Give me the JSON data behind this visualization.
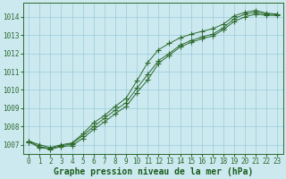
{
  "title": "Graphe pression niveau de la mer (hPa)",
  "x_hours": [
    0,
    1,
    2,
    3,
    4,
    5,
    6,
    7,
    8,
    9,
    10,
    11,
    12,
    13,
    14,
    15,
    16,
    17,
    18,
    19,
    20,
    21,
    22,
    23
  ],
  "series": [
    [
      1007.2,
      1007.0,
      1006.85,
      1007.0,
      1007.1,
      1007.6,
      1008.1,
      1008.4,
      1008.9,
      1009.3,
      1010.1,
      1011.1,
      1011.8,
      1012.15,
      1012.5,
      1012.75,
      1012.9,
      1013.05,
      1013.45,
      1013.95,
      1014.2,
      1014.3,
      1014.2,
      1014.15
    ],
    [
      1007.15,
      1006.85,
      1006.75,
      1006.9,
      1006.95,
      1007.35,
      1007.85,
      1008.3,
      1008.75,
      1009.15,
      1009.9,
      1010.65,
      1011.5,
      1011.95,
      1012.4,
      1012.65,
      1012.85,
      1013.0,
      1013.35,
      1013.8,
      1014.05,
      1014.2,
      1014.1,
      1014.1
    ],
    [
      1007.2,
      1006.9,
      1006.8,
      1006.95,
      1007.05,
      1007.5,
      1008.0,
      1008.4,
      1008.85,
      1009.25,
      1010.05,
      1010.9,
      1011.65,
      1012.05,
      1012.45,
      1012.7,
      1012.88,
      1013.02,
      1013.4,
      1013.87,
      1014.12,
      1014.25,
      1014.15,
      1014.12
    ]
  ],
  "line_top": [
    1007.2,
    1007.0,
    1006.85,
    1007.0,
    1007.1,
    1007.6,
    1008.2,
    1008.6,
    1009.1,
    1009.55,
    1010.5,
    1011.5,
    1012.2,
    1012.55,
    1012.85,
    1013.05,
    1013.2,
    1013.35,
    1013.6,
    1014.05,
    1014.25,
    1014.35,
    1014.2,
    1014.15
  ],
  "line_mid": [
    1007.2,
    1006.9,
    1006.8,
    1006.95,
    1007.05,
    1007.5,
    1008.0,
    1008.45,
    1008.9,
    1009.3,
    1010.1,
    1010.85,
    1011.6,
    1012.0,
    1012.45,
    1012.7,
    1012.9,
    1013.05,
    1013.4,
    1013.9,
    1014.15,
    1014.25,
    1014.15,
    1014.12
  ],
  "line_bot": [
    1007.15,
    1006.85,
    1006.75,
    1006.9,
    1006.95,
    1007.35,
    1007.85,
    1008.25,
    1008.7,
    1009.1,
    1009.85,
    1010.55,
    1011.45,
    1011.9,
    1012.35,
    1012.6,
    1012.8,
    1012.95,
    1013.3,
    1013.75,
    1014.0,
    1014.15,
    1014.08,
    1014.08
  ],
  "ylim": [
    1006.5,
    1014.75
  ],
  "yticks": [
    1007,
    1008,
    1009,
    1010,
    1011,
    1012,
    1013,
    1014
  ],
  "bg_color": "#cce9f0",
  "grid_color": "#99ccd9",
  "line_color": "#2d6a2d",
  "marker": "+",
  "marker_size": 4,
  "title_color": "#1a5c1a",
  "title_fontsize": 7,
  "tick_fontsize": 5.5,
  "tick_color": "#2d6a2d",
  "fig_width": 3.2,
  "fig_height": 2.0
}
